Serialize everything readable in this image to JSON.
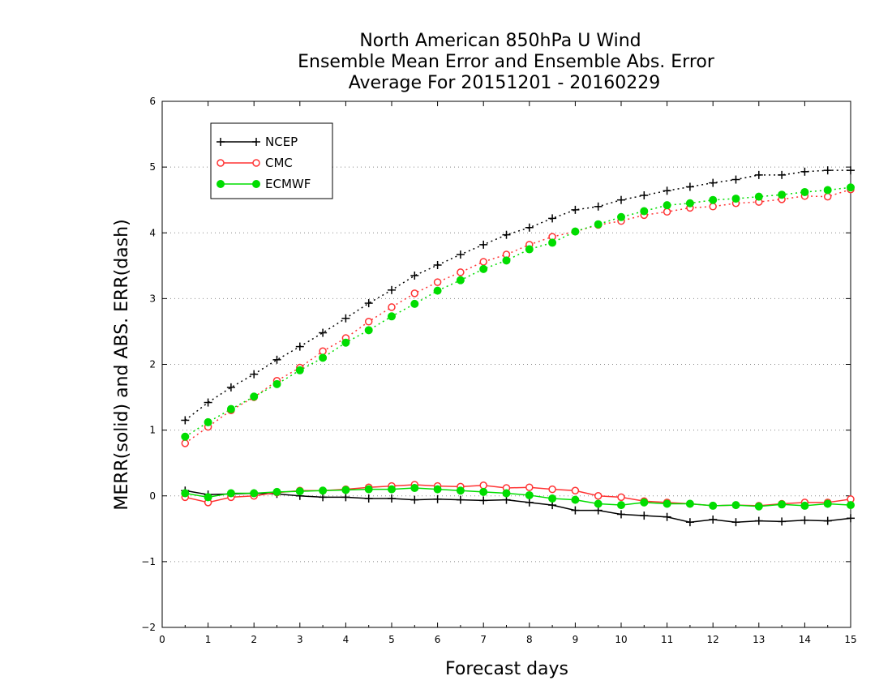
{
  "chart_data": {
    "type": "line",
    "title": [
      "North American 850hPa U Wind",
      "Ensemble Mean Error and Ensemble Abs. Error",
      "Average For 20151201 - 20160229"
    ],
    "xlabel": "Forecast days",
    "ylabel": "MERR(solid) and ABS. ERR(dash)",
    "xlim": [
      0,
      15
    ],
    "ylim": [
      -2,
      6
    ],
    "xticks": [
      "0",
      "1",
      "2",
      "3",
      "4",
      "5",
      "6",
      "7",
      "8",
      "9",
      "10",
      "11",
      "12",
      "13",
      "14",
      "15"
    ],
    "yticks": [
      "−2",
      "−1",
      "0",
      "1",
      "2",
      "3",
      "4",
      "5",
      "6"
    ],
    "grid": "horizontal dotted",
    "legend_position": "top-left",
    "x": [
      0.5,
      1,
      1.5,
      2,
      2.5,
      3,
      3.5,
      4,
      4.5,
      5,
      5.5,
      6,
      6.5,
      7,
      7.5,
      8,
      8.5,
      9,
      9.5,
      10,
      10.5,
      11,
      11.5,
      12,
      12.5,
      13,
      13.5,
      14,
      14.5,
      15
    ],
    "series": [
      {
        "name": "NCEP",
        "color": "#000000",
        "marker": "plus",
        "abs_err": [
          1.15,
          1.42,
          1.65,
          1.85,
          2.07,
          2.27,
          2.48,
          2.7,
          2.93,
          3.13,
          3.35,
          3.51,
          3.67,
          3.82,
          3.97,
          4.08,
          4.22,
          4.35,
          4.4,
          4.5,
          4.57,
          4.64,
          4.7,
          4.76,
          4.81,
          4.88,
          4.88,
          4.93,
          4.95,
          4.95
        ],
        "mean_err": [
          0.08,
          0.02,
          0.03,
          0.04,
          0.03,
          0.0,
          -0.02,
          -0.02,
          -0.04,
          -0.04,
          -0.06,
          -0.05,
          -0.06,
          -0.07,
          -0.06,
          -0.1,
          -0.14,
          -0.22,
          -0.22,
          -0.28,
          -0.3,
          -0.32,
          -0.4,
          -0.36,
          -0.4,
          -0.38,
          -0.39,
          -0.37,
          -0.38,
          -0.34
        ]
      },
      {
        "name": "CMC",
        "color": "#ff3333",
        "marker": "open-circle",
        "abs_err": [
          0.8,
          1.05,
          1.3,
          1.5,
          1.75,
          1.95,
          2.2,
          2.4,
          2.65,
          2.87,
          3.08,
          3.25,
          3.4,
          3.56,
          3.67,
          3.82,
          3.94,
          4.02,
          4.12,
          4.18,
          4.27,
          4.32,
          4.38,
          4.4,
          4.45,
          4.47,
          4.51,
          4.56,
          4.55,
          4.66
        ],
        "mean_err": [
          -0.02,
          -0.1,
          -0.02,
          0.0,
          0.05,
          0.08,
          0.08,
          0.1,
          0.13,
          0.15,
          0.17,
          0.15,
          0.14,
          0.16,
          0.12,
          0.13,
          0.1,
          0.08,
          0.0,
          -0.02,
          -0.08,
          -0.1,
          -0.12,
          -0.15,
          -0.14,
          -0.15,
          -0.12,
          -0.1,
          -0.1,
          -0.05
        ]
      },
      {
        "name": "ECMWF",
        "color": "#00dd00",
        "marker": "filled-circle",
        "abs_err": [
          0.9,
          1.12,
          1.32,
          1.51,
          1.7,
          1.91,
          2.1,
          2.33,
          2.52,
          2.73,
          2.92,
          3.12,
          3.28,
          3.45,
          3.58,
          3.75,
          3.85,
          4.02,
          4.13,
          4.24,
          4.33,
          4.42,
          4.45,
          4.5,
          4.52,
          4.55,
          4.58,
          4.62,
          4.65,
          4.69
        ],
        "mean_err": [
          0.04,
          -0.02,
          0.04,
          0.04,
          0.06,
          0.07,
          0.08,
          0.09,
          0.1,
          0.1,
          0.12,
          0.1,
          0.08,
          0.06,
          0.04,
          0.01,
          -0.04,
          -0.06,
          -0.12,
          -0.14,
          -0.1,
          -0.12,
          -0.12,
          -0.15,
          -0.14,
          -0.16,
          -0.13,
          -0.15,
          -0.12,
          -0.14
        ]
      }
    ]
  }
}
